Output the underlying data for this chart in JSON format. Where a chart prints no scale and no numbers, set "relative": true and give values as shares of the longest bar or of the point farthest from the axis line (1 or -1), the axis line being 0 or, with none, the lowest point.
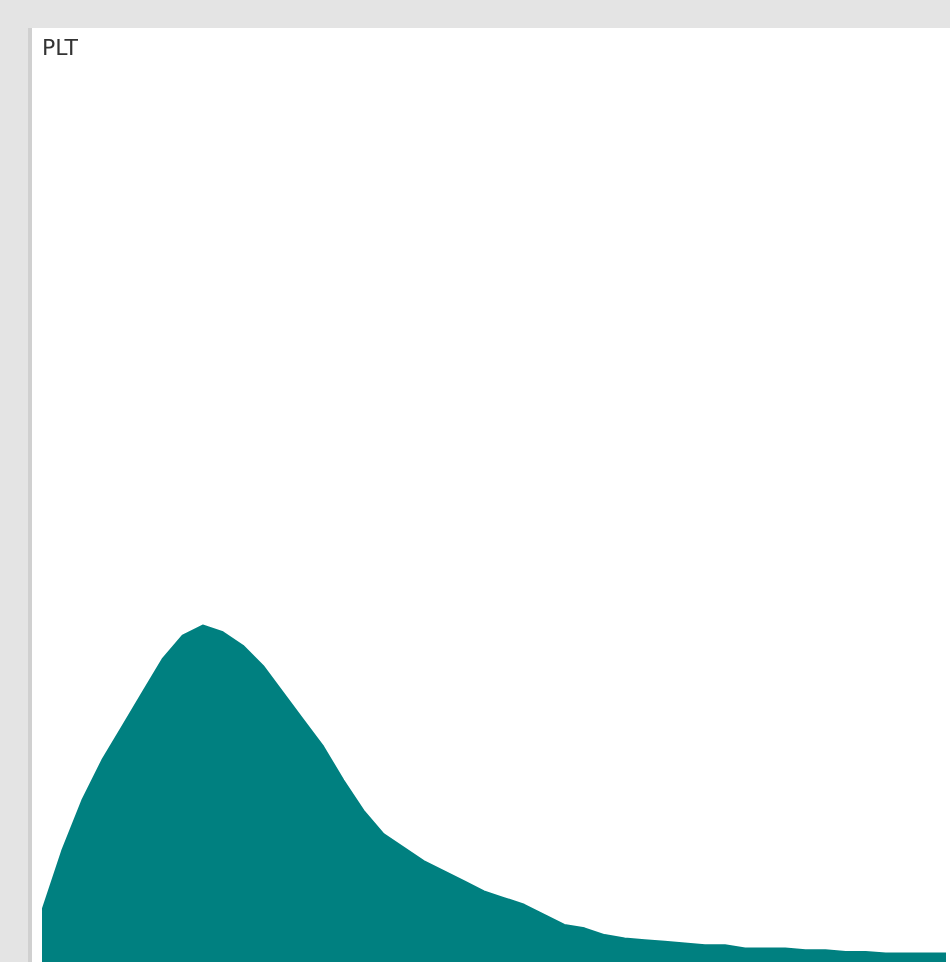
{
  "chart_data": {
    "type": "area",
    "title": "PLT",
    "relative": true,
    "legend": false,
    "marker": "none",
    "categories": [
      null,
      null,
      null,
      null,
      null,
      null,
      null,
      null,
      null,
      null,
      null,
      null,
      null,
      null,
      null,
      null,
      null,
      null,
      null,
      null,
      null,
      null,
      null,
      null,
      null,
      null,
      null,
      null,
      null,
      null,
      null,
      null,
      null,
      null,
      null,
      null,
      null,
      null,
      null,
      null,
      null,
      null,
      null,
      null,
      null,
      null
    ],
    "series": [
      {
        "color": "#008080",
        "values": [
          0.15,
          0.33,
          0.48,
          0.6,
          0.7,
          0.8,
          0.9,
          0.97,
          1,
          0.98,
          0.94,
          0.88,
          0.8,
          0.72,
          0.64,
          0.54,
          0.45,
          0.38,
          0.34,
          0.3,
          0.27,
          0.24,
          0.21,
          0.19,
          0.17,
          0.14,
          0.11,
          0.1,
          0.08,
          0.07,
          0.065,
          0.06,
          0.055,
          0.05,
          0.05,
          0.04,
          0.04,
          0.04,
          0.035,
          0.035,
          0.03,
          0.03,
          0.025,
          0.025,
          0.025,
          0.025
        ]
      }
    ]
  }
}
